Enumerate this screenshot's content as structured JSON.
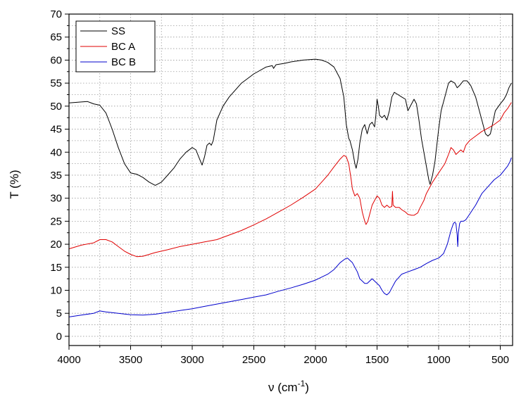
{
  "chart_data": {
    "type": "line",
    "xlabel": "ν (cm",
    "xlabel_sup": "-1",
    "xlabel_tail": ")",
    "ylabel": "T (%)",
    "xlim": [
      4000,
      400
    ],
    "ylim": [
      -2,
      70
    ],
    "x_ticks": [
      4000,
      3500,
      3000,
      2500,
      2000,
      1500,
      1000,
      500
    ],
    "x_tick_labels": [
      "4000",
      "3500",
      "3000",
      "2500",
      "2000",
      "1500",
      "1000",
      "500"
    ],
    "y_ticks": [
      0,
      5,
      10,
      15,
      20,
      25,
      30,
      35,
      40,
      45,
      50,
      55,
      60,
      65,
      70
    ],
    "y_tick_labels": [
      "0",
      "5",
      "10",
      "15",
      "20",
      "25",
      "30",
      "35",
      "40",
      "45",
      "50",
      "55",
      "60",
      "65",
      "70"
    ],
    "grid": true,
    "legend_position": "top-left",
    "series": [
      {
        "name": "SS",
        "color": "#000000",
        "points": [
          [
            4000,
            50.7
          ],
          [
            3900,
            50.9
          ],
          [
            3850,
            51.0
          ],
          [
            3800,
            50.5
          ],
          [
            3750,
            50.2
          ],
          [
            3700,
            48.5
          ],
          [
            3650,
            45.0
          ],
          [
            3600,
            41.0
          ],
          [
            3550,
            37.5
          ],
          [
            3500,
            35.5
          ],
          [
            3450,
            35.2
          ],
          [
            3400,
            34.5
          ],
          [
            3350,
            33.5
          ],
          [
            3300,
            32.8
          ],
          [
            3250,
            33.5
          ],
          [
            3200,
            35.0
          ],
          [
            3150,
            36.5
          ],
          [
            3100,
            38.5
          ],
          [
            3050,
            40.0
          ],
          [
            3000,
            41.0
          ],
          [
            2970,
            40.5
          ],
          [
            2940,
            38.5
          ],
          [
            2920,
            37.2
          ],
          [
            2900,
            39.0
          ],
          [
            2880,
            41.5
          ],
          [
            2860,
            42.0
          ],
          [
            2845,
            41.5
          ],
          [
            2830,
            42.5
          ],
          [
            2800,
            47.0
          ],
          [
            2750,
            50.0
          ],
          [
            2700,
            52.0
          ],
          [
            2600,
            55.0
          ],
          [
            2500,
            57.0
          ],
          [
            2400,
            58.5
          ],
          [
            2350,
            58.8
          ],
          [
            2340,
            58.2
          ],
          [
            2320,
            59.0
          ],
          [
            2250,
            59.3
          ],
          [
            2200,
            59.6
          ],
          [
            2100,
            60.0
          ],
          [
            2000,
            60.2
          ],
          [
            1950,
            60.0
          ],
          [
            1900,
            59.5
          ],
          [
            1850,
            58.5
          ],
          [
            1800,
            56.0
          ],
          [
            1770,
            52.0
          ],
          [
            1750,
            46.0
          ],
          [
            1730,
            43.0
          ],
          [
            1720,
            42.5
          ],
          [
            1700,
            40.5
          ],
          [
            1680,
            37.5
          ],
          [
            1670,
            36.5
          ],
          [
            1655,
            38.5
          ],
          [
            1640,
            42.0
          ],
          [
            1620,
            45.0
          ],
          [
            1600,
            46.0
          ],
          [
            1580,
            44.0
          ],
          [
            1560,
            46.0
          ],
          [
            1540,
            46.5
          ],
          [
            1520,
            45.5
          ],
          [
            1510,
            48.0
          ],
          [
            1500,
            51.5
          ],
          [
            1490,
            50.0
          ],
          [
            1480,
            48.0
          ],
          [
            1460,
            47.5
          ],
          [
            1440,
            48.0
          ],
          [
            1420,
            47.0
          ],
          [
            1400,
            49.0
          ],
          [
            1380,
            52.0
          ],
          [
            1360,
            53.0
          ],
          [
            1330,
            52.5
          ],
          [
            1300,
            52.0
          ],
          [
            1270,
            51.5
          ],
          [
            1250,
            49.0
          ],
          [
            1220,
            50.5
          ],
          [
            1200,
            51.5
          ],
          [
            1180,
            50.5
          ],
          [
            1160,
            47.0
          ],
          [
            1140,
            43.0
          ],
          [
            1120,
            40.0
          ],
          [
            1100,
            37.0
          ],
          [
            1080,
            34.0
          ],
          [
            1070,
            33.0
          ],
          [
            1050,
            35.0
          ],
          [
            1030,
            38.0
          ],
          [
            1000,
            45.0
          ],
          [
            980,
            49.0
          ],
          [
            950,
            52.0
          ],
          [
            920,
            55.0
          ],
          [
            900,
            55.5
          ],
          [
            870,
            55.0
          ],
          [
            850,
            54.0
          ],
          [
            830,
            54.5
          ],
          [
            800,
            55.5
          ],
          [
            770,
            55.5
          ],
          [
            740,
            54.5
          ],
          [
            700,
            52.0
          ],
          [
            650,
            47.0
          ],
          [
            620,
            44.0
          ],
          [
            600,
            43.5
          ],
          [
            580,
            44.0
          ],
          [
            560,
            46.5
          ],
          [
            540,
            49.0
          ],
          [
            500,
            50.5
          ],
          [
            470,
            51.5
          ],
          [
            450,
            52.5
          ],
          [
            430,
            54.0
          ],
          [
            410,
            55.0
          ]
        ]
      },
      {
        "name": "BC A",
        "color": "#e00000",
        "points": [
          [
            4000,
            19.0
          ],
          [
            3900,
            19.8
          ],
          [
            3800,
            20.3
          ],
          [
            3750,
            21.0
          ],
          [
            3700,
            21.0
          ],
          [
            3650,
            20.5
          ],
          [
            3600,
            19.5
          ],
          [
            3550,
            18.5
          ],
          [
            3500,
            17.8
          ],
          [
            3450,
            17.3
          ],
          [
            3400,
            17.4
          ],
          [
            3350,
            17.8
          ],
          [
            3300,
            18.2
          ],
          [
            3200,
            18.8
          ],
          [
            3100,
            19.5
          ],
          [
            3000,
            20.0
          ],
          [
            2900,
            20.5
          ],
          [
            2800,
            21.0
          ],
          [
            2700,
            22.0
          ],
          [
            2600,
            23.0
          ],
          [
            2500,
            24.2
          ],
          [
            2400,
            25.5
          ],
          [
            2300,
            27.0
          ],
          [
            2200,
            28.5
          ],
          [
            2100,
            30.2
          ],
          [
            2000,
            32.0
          ],
          [
            1950,
            33.5
          ],
          [
            1900,
            35.0
          ],
          [
            1850,
            36.8
          ],
          [
            1800,
            38.5
          ],
          [
            1770,
            39.3
          ],
          [
            1750,
            39.0
          ],
          [
            1730,
            37.5
          ],
          [
            1710,
            34.0
          ],
          [
            1700,
            32.0
          ],
          [
            1680,
            30.5
          ],
          [
            1660,
            31.0
          ],
          [
            1640,
            30.0
          ],
          [
            1620,
            27.0
          ],
          [
            1600,
            25.0
          ],
          [
            1590,
            24.3
          ],
          [
            1575,
            25.0
          ],
          [
            1560,
            26.5
          ],
          [
            1540,
            28.5
          ],
          [
            1520,
            29.5
          ],
          [
            1500,
            30.5
          ],
          [
            1480,
            30.0
          ],
          [
            1460,
            28.5
          ],
          [
            1440,
            28.0
          ],
          [
            1420,
            28.5
          ],
          [
            1400,
            28.0
          ],
          [
            1380,
            28.2
          ],
          [
            1375,
            31.5
          ],
          [
            1370,
            28.5
          ],
          [
            1350,
            28.0
          ],
          [
            1320,
            28.0
          ],
          [
            1300,
            27.5
          ],
          [
            1270,
            27.0
          ],
          [
            1250,
            26.5
          ],
          [
            1220,
            26.3
          ],
          [
            1200,
            26.3
          ],
          [
            1170,
            26.8
          ],
          [
            1150,
            28.0
          ],
          [
            1120,
            29.5
          ],
          [
            1100,
            31.0
          ],
          [
            1080,
            32.0
          ],
          [
            1050,
            33.5
          ],
          [
            1000,
            35.5
          ],
          [
            950,
            37.5
          ],
          [
            920,
            39.5
          ],
          [
            900,
            41.0
          ],
          [
            880,
            40.5
          ],
          [
            860,
            39.5
          ],
          [
            840,
            40.0
          ],
          [
            820,
            40.5
          ],
          [
            800,
            40.0
          ],
          [
            780,
            41.5
          ],
          [
            750,
            42.5
          ],
          [
            700,
            43.5
          ],
          [
            650,
            44.5
          ],
          [
            600,
            45.2
          ],
          [
            550,
            46.0
          ],
          [
            500,
            47.0
          ],
          [
            470,
            48.5
          ],
          [
            440,
            49.5
          ],
          [
            410,
            50.8
          ]
        ]
      },
      {
        "name": "BC B",
        "color": "#0000cc",
        "points": [
          [
            4000,
            4.2
          ],
          [
            3900,
            4.6
          ],
          [
            3800,
            5.0
          ],
          [
            3750,
            5.5
          ],
          [
            3700,
            5.3
          ],
          [
            3600,
            5.0
          ],
          [
            3500,
            4.7
          ],
          [
            3400,
            4.6
          ],
          [
            3300,
            4.8
          ],
          [
            3200,
            5.2
          ],
          [
            3100,
            5.6
          ],
          [
            3000,
            6.0
          ],
          [
            2900,
            6.5
          ],
          [
            2800,
            7.0
          ],
          [
            2700,
            7.5
          ],
          [
            2600,
            8.0
          ],
          [
            2500,
            8.5
          ],
          [
            2400,
            9.0
          ],
          [
            2300,
            9.8
          ],
          [
            2200,
            10.5
          ],
          [
            2100,
            11.3
          ],
          [
            2000,
            12.2
          ],
          [
            1900,
            13.5
          ],
          [
            1850,
            14.5
          ],
          [
            1800,
            16.0
          ],
          [
            1760,
            16.8
          ],
          [
            1740,
            17.0
          ],
          [
            1720,
            16.5
          ],
          [
            1700,
            16.0
          ],
          [
            1680,
            15.0
          ],
          [
            1660,
            14.0
          ],
          [
            1640,
            12.5
          ],
          [
            1620,
            12.0
          ],
          [
            1600,
            11.5
          ],
          [
            1580,
            11.5
          ],
          [
            1560,
            12.0
          ],
          [
            1540,
            12.5
          ],
          [
            1520,
            12.0
          ],
          [
            1500,
            11.5
          ],
          [
            1480,
            11.0
          ],
          [
            1460,
            10.0
          ],
          [
            1440,
            9.3
          ],
          [
            1420,
            9.0
          ],
          [
            1400,
            9.5
          ],
          [
            1380,
            10.5
          ],
          [
            1350,
            12.0
          ],
          [
            1300,
            13.5
          ],
          [
            1250,
            14.0
          ],
          [
            1200,
            14.5
          ],
          [
            1150,
            15.0
          ],
          [
            1100,
            15.8
          ],
          [
            1050,
            16.5
          ],
          [
            1000,
            17.0
          ],
          [
            960,
            18.0
          ],
          [
            930,
            20.0
          ],
          [
            900,
            23.0
          ],
          [
            880,
            24.5
          ],
          [
            870,
            24.8
          ],
          [
            860,
            24.5
          ],
          [
            850,
            22.0
          ],
          [
            845,
            19.5
          ],
          [
            840,
            22.5
          ],
          [
            830,
            24.5
          ],
          [
            820,
            25.0
          ],
          [
            800,
            25.0
          ],
          [
            780,
            25.3
          ],
          [
            750,
            26.5
          ],
          [
            700,
            28.5
          ],
          [
            650,
            31.0
          ],
          [
            600,
            32.5
          ],
          [
            550,
            34.0
          ],
          [
            500,
            35.0
          ],
          [
            470,
            36.0
          ],
          [
            440,
            37.0
          ],
          [
            420,
            38.0
          ],
          [
            410,
            38.8
          ]
        ]
      }
    ]
  }
}
